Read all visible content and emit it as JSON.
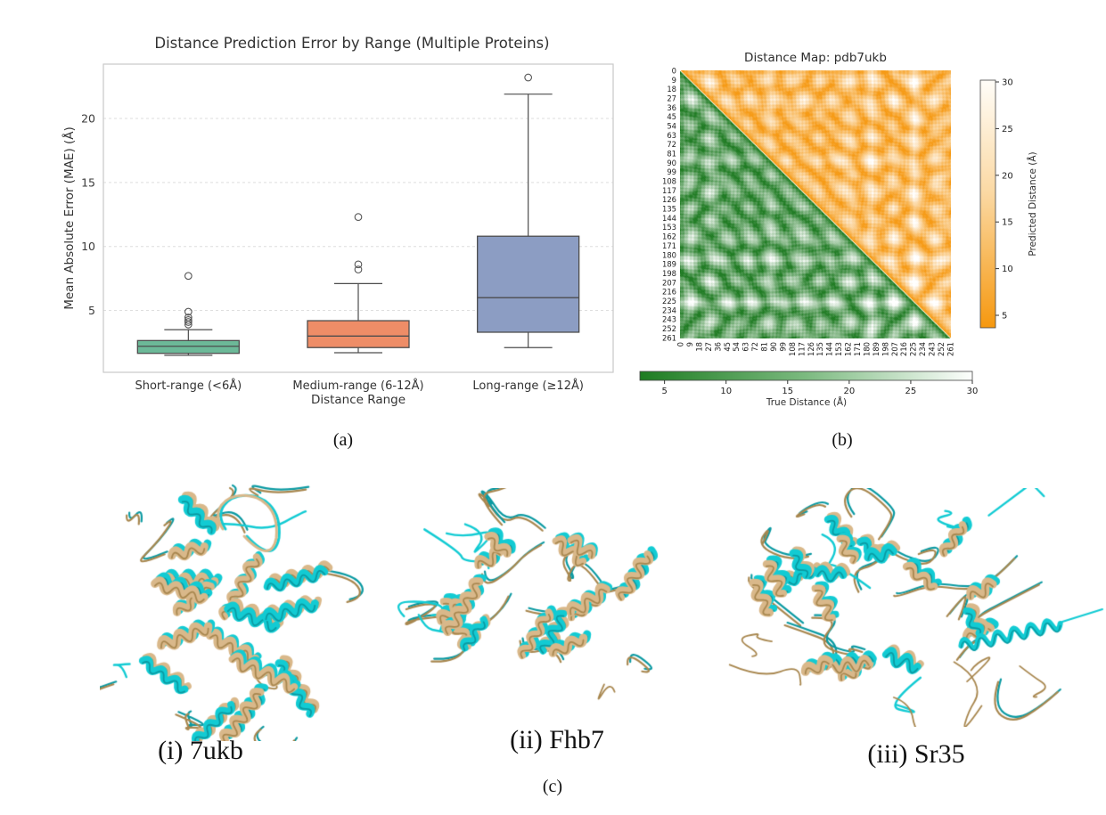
{
  "figure": {
    "captions": {
      "a": "(a)",
      "b": "(b)",
      "c": "(c)"
    }
  },
  "chart_data": [
    {
      "type": "boxplot",
      "title": "Distance Prediction Error by Range (Multiple Proteins)",
      "xlabel": "Distance Range",
      "ylabel": "Mean Absolute Error (MAE) (Å)",
      "categories": [
        "Short-range (<6Å)",
        "Medium-range (6-12Å)",
        "Long-range (≥12Å)"
      ],
      "yticks": [
        5,
        10,
        15,
        20
      ],
      "ylim": [
        0,
        24.3
      ],
      "grid": "horizontal-dashed",
      "boxes": [
        {
          "category": "Short-range (<6Å)",
          "color": "#6cb998",
          "whislo": 1.5,
          "q1": 1.65,
          "med": 2.2,
          "q3": 2.65,
          "whishi": 3.5,
          "outliers": [
            3.9,
            4.1,
            4.25,
            4.45,
            4.9,
            7.7
          ]
        },
        {
          "category": "Medium-range (6-12Å)",
          "color": "#ee8d67",
          "whislo": 1.7,
          "q1": 2.1,
          "med": 3.0,
          "q3": 4.2,
          "whishi": 7.1,
          "outliers": [
            8.2,
            8.6,
            12.3
          ]
        },
        {
          "category": "Long-range (≥12Å)",
          "color": "#8c9dc3",
          "whislo": 2.1,
          "q1": 3.3,
          "med": 6.0,
          "q3": 10.8,
          "whishi": 21.9,
          "outliers": [
            23.2
          ]
        }
      ]
    },
    {
      "type": "heatmap",
      "title": "Distance Map: pdb7ukb",
      "n_residues": 262,
      "tick_values": [
        0,
        9,
        18,
        27,
        36,
        45,
        54,
        63,
        72,
        81,
        90,
        99,
        108,
        117,
        126,
        135,
        144,
        153,
        162,
        171,
        180,
        189,
        198,
        207,
        216,
        225,
        234,
        243,
        252,
        261
      ],
      "upper_triangle": "predicted distances (orange colormap)",
      "lower_triangle": "true distances (green colormap)",
      "value_range": [
        4,
        30
      ],
      "colorbar_right": {
        "label": "Predicted Distance (Å)",
        "ticks": [
          5,
          10,
          15,
          20,
          25,
          30
        ],
        "color_low": "#f6980f",
        "color_high": "#fffdf8"
      },
      "colorbar_bottom": {
        "label": "True Distance (Å)",
        "ticks": [
          5,
          10,
          15,
          20,
          25,
          30
        ],
        "color_low": "#1d7c21",
        "color_high": "#fdfffd"
      }
    }
  ],
  "panel_c": {
    "items": [
      {
        "label": "(i) 7ukb"
      },
      {
        "label": "(ii) Fhb7"
      },
      {
        "label": "(iii) Sr35"
      }
    ],
    "structure_colors": {
      "model": "#12cbd3",
      "reference": "#d9b88a"
    }
  }
}
